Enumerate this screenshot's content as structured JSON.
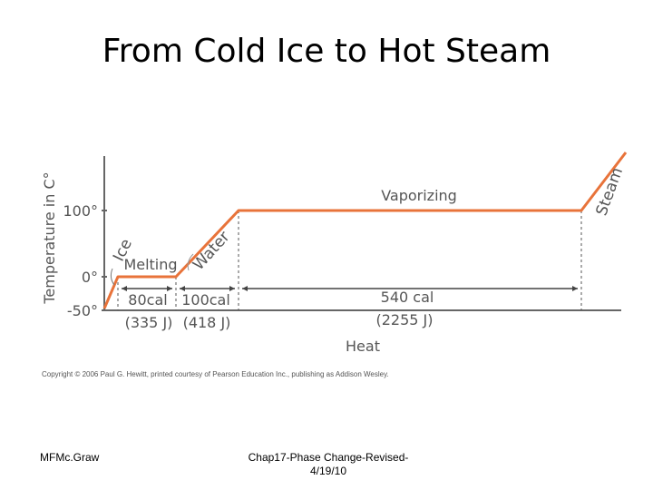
{
  "slide": {
    "title": "From Cold Ice to Hot Steam",
    "footer_left": "MFMc.Graw",
    "footer_center_line1": "Chap17-Phase Change-Revised-",
    "footer_center_line2": "4/19/10"
  },
  "chart_data": {
    "type": "line",
    "ylabel": "Temperature in C°",
    "xlabel": "Heat",
    "y_ticks": [
      "100°",
      "0°",
      "-50°"
    ],
    "y_tick_values": [
      100,
      0,
      -50
    ],
    "phase_labels": {
      "ice": "Ice",
      "melting": "Melting",
      "water": "Water",
      "vaporizing": "Vaporizing",
      "steam": "Steam"
    },
    "heat_segments": [
      {
        "cal": "80cal",
        "joules": "(335 J)"
      },
      {
        "cal": "100cal",
        "joules": "(418 J)"
      },
      {
        "cal": "540 cal",
        "joules": "(2255 J)"
      }
    ],
    "copyright": "Copyright © 2006 Paul G. Hewitt, printed courtesy of Pearson Education Inc., publishing as Addison Wesley.",
    "line_color": "#e8733a"
  }
}
